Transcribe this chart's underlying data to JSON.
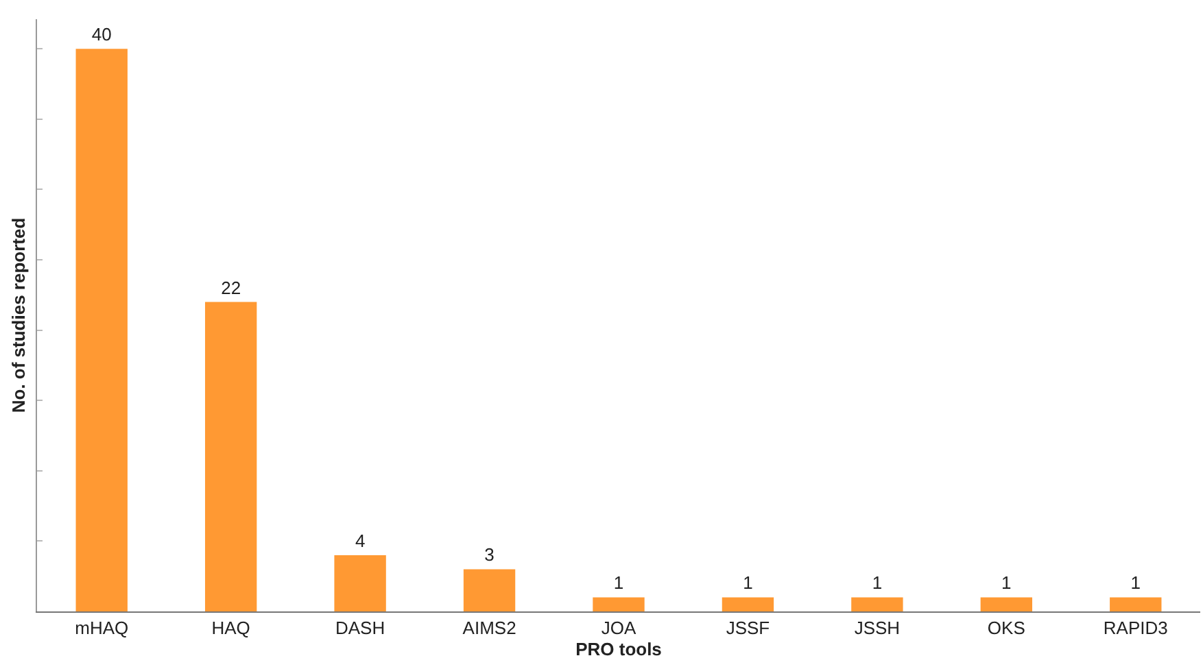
{
  "chart_data": {
    "type": "bar",
    "xlabel": "PRO tools",
    "ylabel": "No. of studies reported",
    "categories": [
      "mHAQ",
      "HAQ",
      "DASH",
      "AIMS2",
      "JOA",
      "JSSF",
      "JSSH",
      "OKS",
      "RAPID3"
    ],
    "values": [
      40,
      22,
      4,
      3,
      1,
      1,
      1,
      1,
      1
    ],
    "color": "#ff9933",
    "data_labels": true,
    "tick_labels": "x",
    "grid": false
  }
}
